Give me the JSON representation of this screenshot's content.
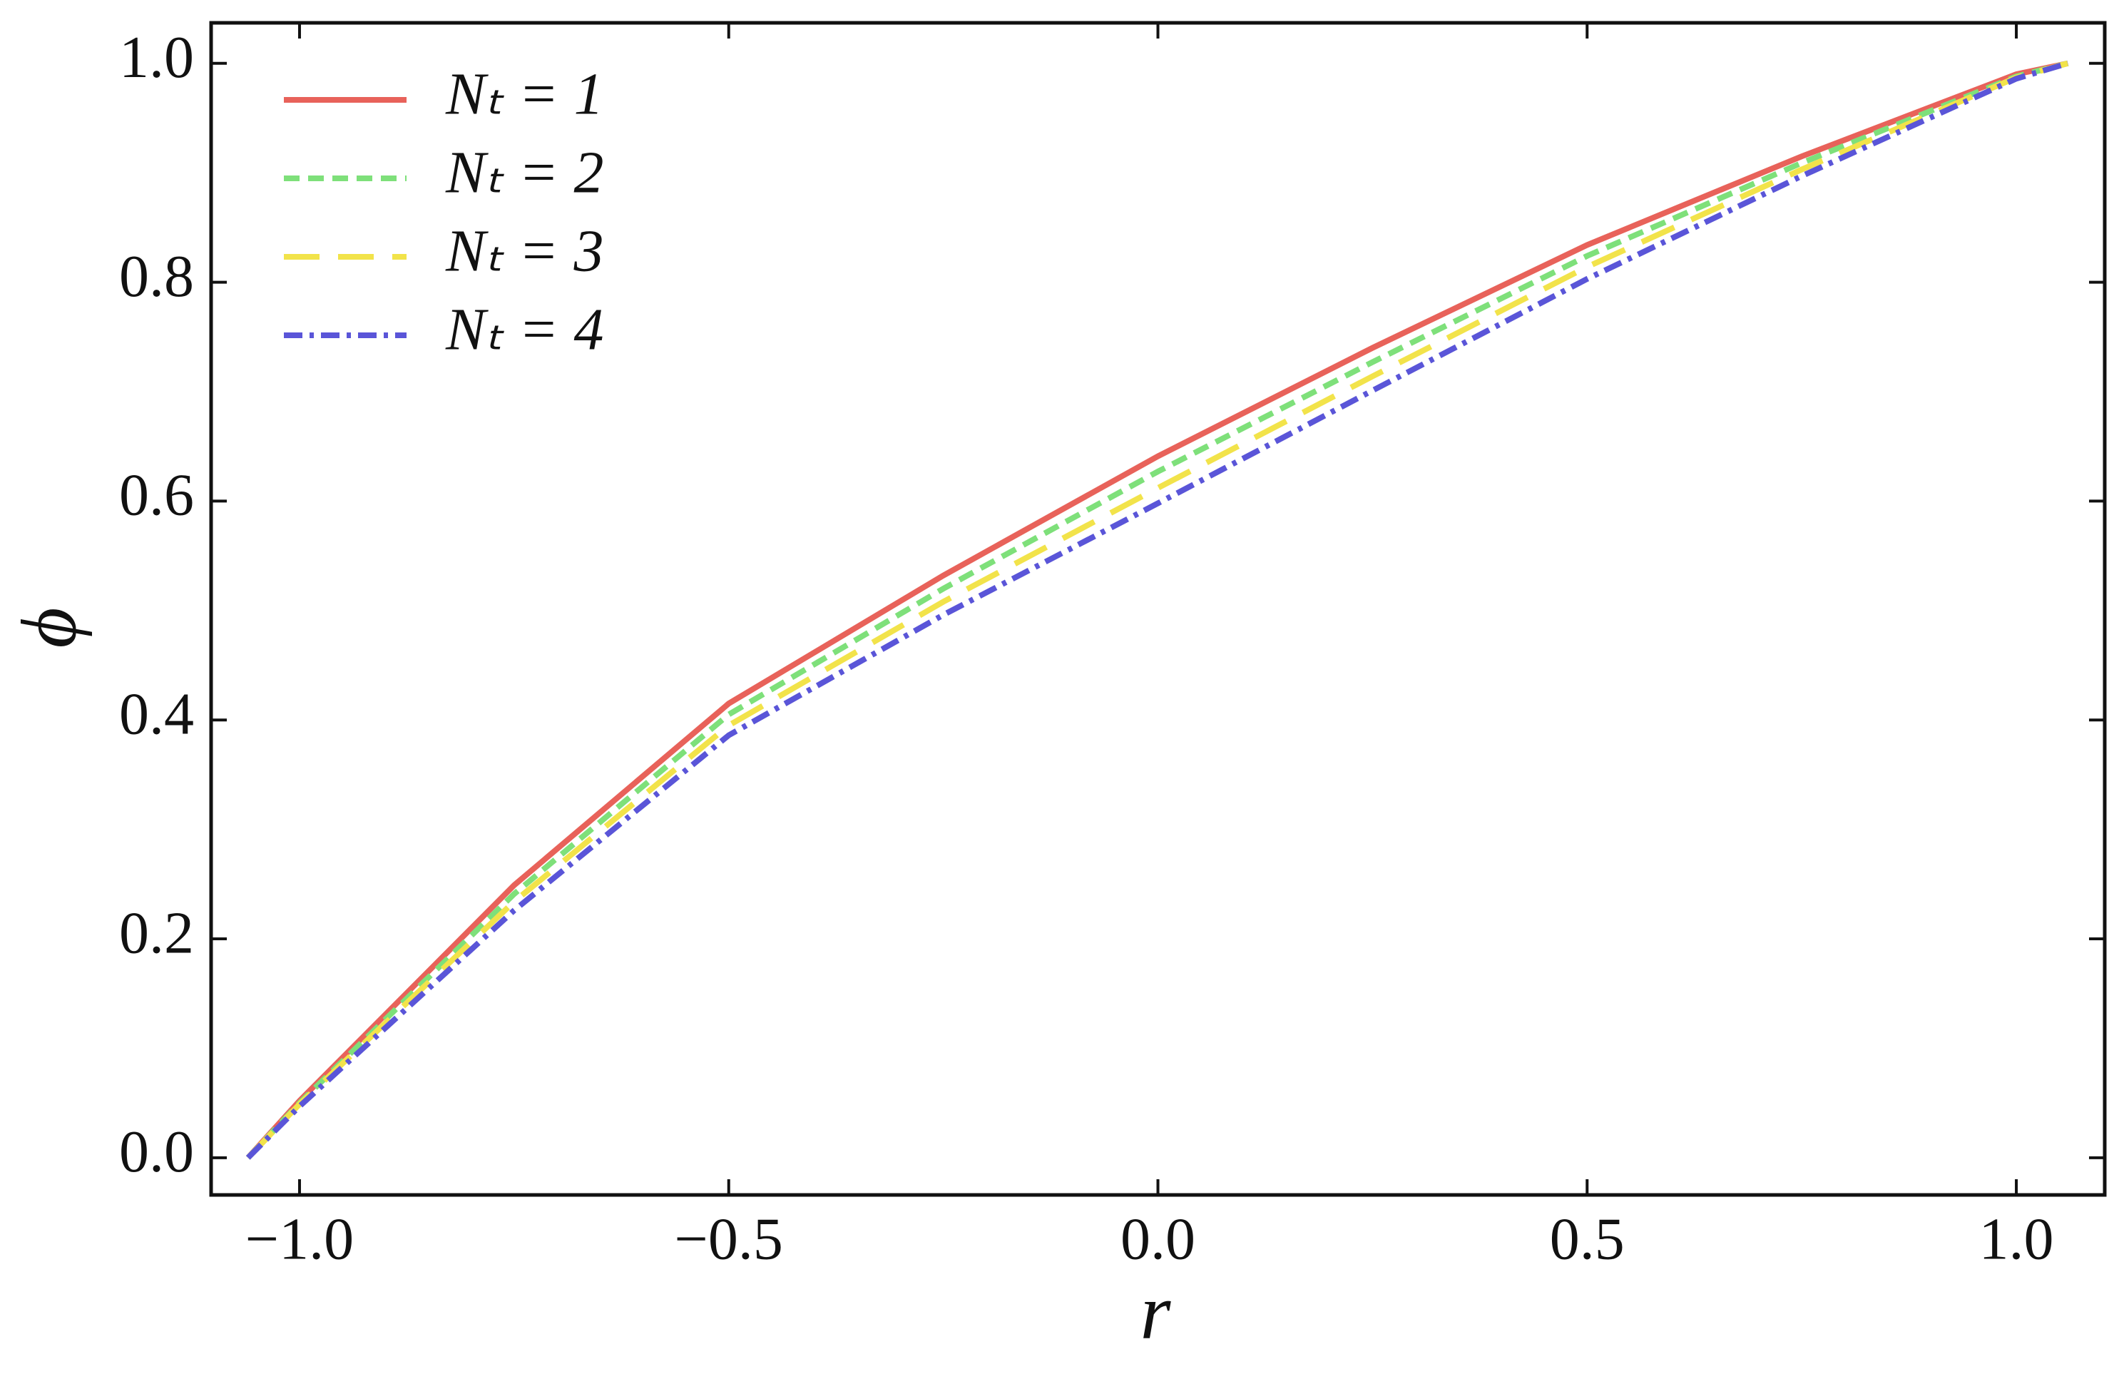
{
  "chart_data": {
    "type": "line",
    "xlabel": "r",
    "ylabel": "ϕ",
    "x": [
      -1.06,
      -1.0,
      -0.75,
      -0.5,
      -0.25,
      0,
      0.25,
      0.5,
      0.75,
      1.0,
      1.06
    ],
    "series": [
      {
        "name": "Nₜ = 1",
        "color": "#e8625a",
        "dash": "solid",
        "values": [
          0,
          0.052,
          0.249,
          0.415,
          0.532,
          0.641,
          0.74,
          0.834,
          0.915,
          0.99,
          1.0
        ]
      },
      {
        "name": "Nₜ = 2",
        "color": "#7ee07a",
        "dash": "short",
        "values": [
          0,
          0.05,
          0.241,
          0.405,
          0.52,
          0.627,
          0.727,
          0.824,
          0.909,
          0.988,
          1.0
        ]
      },
      {
        "name": "Nₜ = 3",
        "color": "#f2e34a",
        "dash": "long",
        "values": [
          0,
          0.049,
          0.234,
          0.395,
          0.508,
          0.612,
          0.714,
          0.814,
          0.903,
          0.987,
          1.0
        ]
      },
      {
        "name": "Nₜ = 4",
        "color": "#5a55d8",
        "dash": "dotdash",
        "values": [
          0,
          0.047,
          0.226,
          0.386,
          0.496,
          0.598,
          0.701,
          0.803,
          0.897,
          0.986,
          1.0
        ]
      }
    ],
    "xlim": [
      -1.103,
      1.103
    ],
    "ylim": [
      -0.034,
      1.037
    ],
    "xticks": [
      {
        "value": -1.0,
        "label": "−1.0"
      },
      {
        "value": -0.5,
        "label": "−0.5"
      },
      {
        "value": 0,
        "label": "0.0"
      },
      {
        "value": 0.5,
        "label": "0.5"
      },
      {
        "value": 1.0,
        "label": "1.0"
      }
    ],
    "yticks": [
      {
        "value": 0,
        "label": "0.0"
      },
      {
        "value": 0.2,
        "label": "0.2"
      },
      {
        "value": 0.4,
        "label": "0.4"
      },
      {
        "value": 0.6,
        "label": "0.6"
      },
      {
        "value": 0.8,
        "label": "0.8"
      },
      {
        "value": 1.0,
        "label": "1.0"
      }
    ],
    "legend": "upper-left",
    "grid": false
  }
}
